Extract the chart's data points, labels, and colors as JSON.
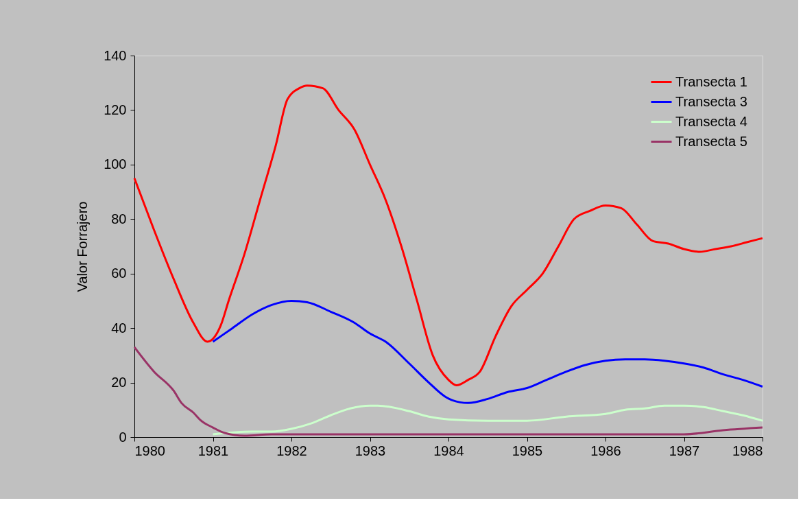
{
  "chart_data": {
    "type": "line",
    "ylabel": "Valor Forrajero",
    "xlim": [
      1980,
      1988
    ],
    "xticks": [
      1980,
      1981,
      1982,
      1983,
      1984,
      1985,
      1986,
      1987,
      1988
    ],
    "ylim": [
      0,
      140
    ],
    "yticks": [
      0,
      20,
      40,
      60,
      80,
      100,
      120,
      140
    ],
    "grid": false,
    "legend": "top right",
    "marker": "none",
    "line_style": "solid",
    "series": [
      {
        "name": "Transecta 1",
        "color": "#ff0000",
        "x": [
          1980,
          1980.25,
          1980.5,
          1980.75,
          1980.93,
          1981.1,
          1981.2,
          1981.4,
          1981.6,
          1981.8,
          1981.95,
          1982.1,
          1982.2,
          1982.4,
          1982.6,
          1982.8,
          1983,
          1983.2,
          1983.4,
          1983.6,
          1983.8,
          1984,
          1984.1,
          1984.25,
          1984.4,
          1984.6,
          1984.8,
          1985,
          1985.2,
          1985.4,
          1985.6,
          1985.8,
          1986,
          1986.2,
          1986.4,
          1986.6,
          1986.8,
          1987,
          1987.2,
          1987.4,
          1987.6,
          1987.8,
          1988
        ],
        "values": [
          95,
          76,
          58,
          42,
          35,
          41,
          50,
          67,
          87,
          107,
          124,
          128,
          129,
          128,
          120,
          113,
          100,
          87,
          70,
          50,
          30,
          21,
          19,
          21,
          24,
          37,
          48,
          54,
          60,
          70,
          80,
          83,
          85,
          84,
          78,
          72,
          71,
          69,
          68,
          69,
          70,
          71.5,
          73
        ]
      },
      {
        "name": "Transecta 3",
        "color": "#0000ff",
        "x": [
          1981,
          1981.25,
          1981.5,
          1981.75,
          1982,
          1982.2,
          1982.5,
          1982.8,
          1983,
          1983.2,
          1983.5,
          1983.75,
          1983.95,
          1984.05,
          1984.25,
          1984.5,
          1984.75,
          1985,
          1985.25,
          1985.5,
          1985.75,
          1986,
          1986.25,
          1986.5,
          1986.75,
          1987,
          1987.25,
          1987.5,
          1987.75,
          1988
        ],
        "values": [
          35,
          40,
          45,
          48.5,
          50,
          49.5,
          46,
          42,
          38,
          35,
          27,
          20,
          15,
          13.5,
          12.5,
          14,
          16.5,
          18,
          21,
          24,
          26.5,
          28,
          28.5,
          28.5,
          28,
          27,
          25.5,
          23,
          21,
          18.5
        ]
      },
      {
        "name": "Transecta 4",
        "color": "#ccffcc",
        "x": [
          1981,
          1981.5,
          1981.75,
          1982,
          1982.25,
          1982.5,
          1982.75,
          1983,
          1983.1,
          1983.5,
          1983.75,
          1984,
          1984.5,
          1985,
          1985.5,
          1986,
          1986.25,
          1986.5,
          1986.75,
          1987,
          1987.25,
          1987.5,
          1987.75,
          1988
        ],
        "values": [
          1,
          2,
          2,
          3,
          5,
          8,
          10.5,
          11.5,
          11.5,
          9.5,
          7.5,
          6.5,
          6,
          6,
          7.5,
          8.5,
          10,
          10.5,
          11.5,
          11.5,
          11,
          9.5,
          8,
          6
        ]
      },
      {
        "name": "Transecta 5",
        "color": "#993366",
        "x": [
          1980,
          1980.25,
          1980.5,
          1980.6,
          1980.75,
          1980.85,
          1981,
          1981.15,
          1981.4,
          1981.75,
          1982,
          1983,
          1984,
          1985,
          1986,
          1987,
          1987.5,
          1988
        ],
        "values": [
          33,
          24,
          17,
          12.5,
          9,
          6,
          3.5,
          1.5,
          0.5,
          1,
          1,
          1,
          1,
          1,
          1,
          1,
          2.5,
          3.5
        ]
      }
    ]
  }
}
